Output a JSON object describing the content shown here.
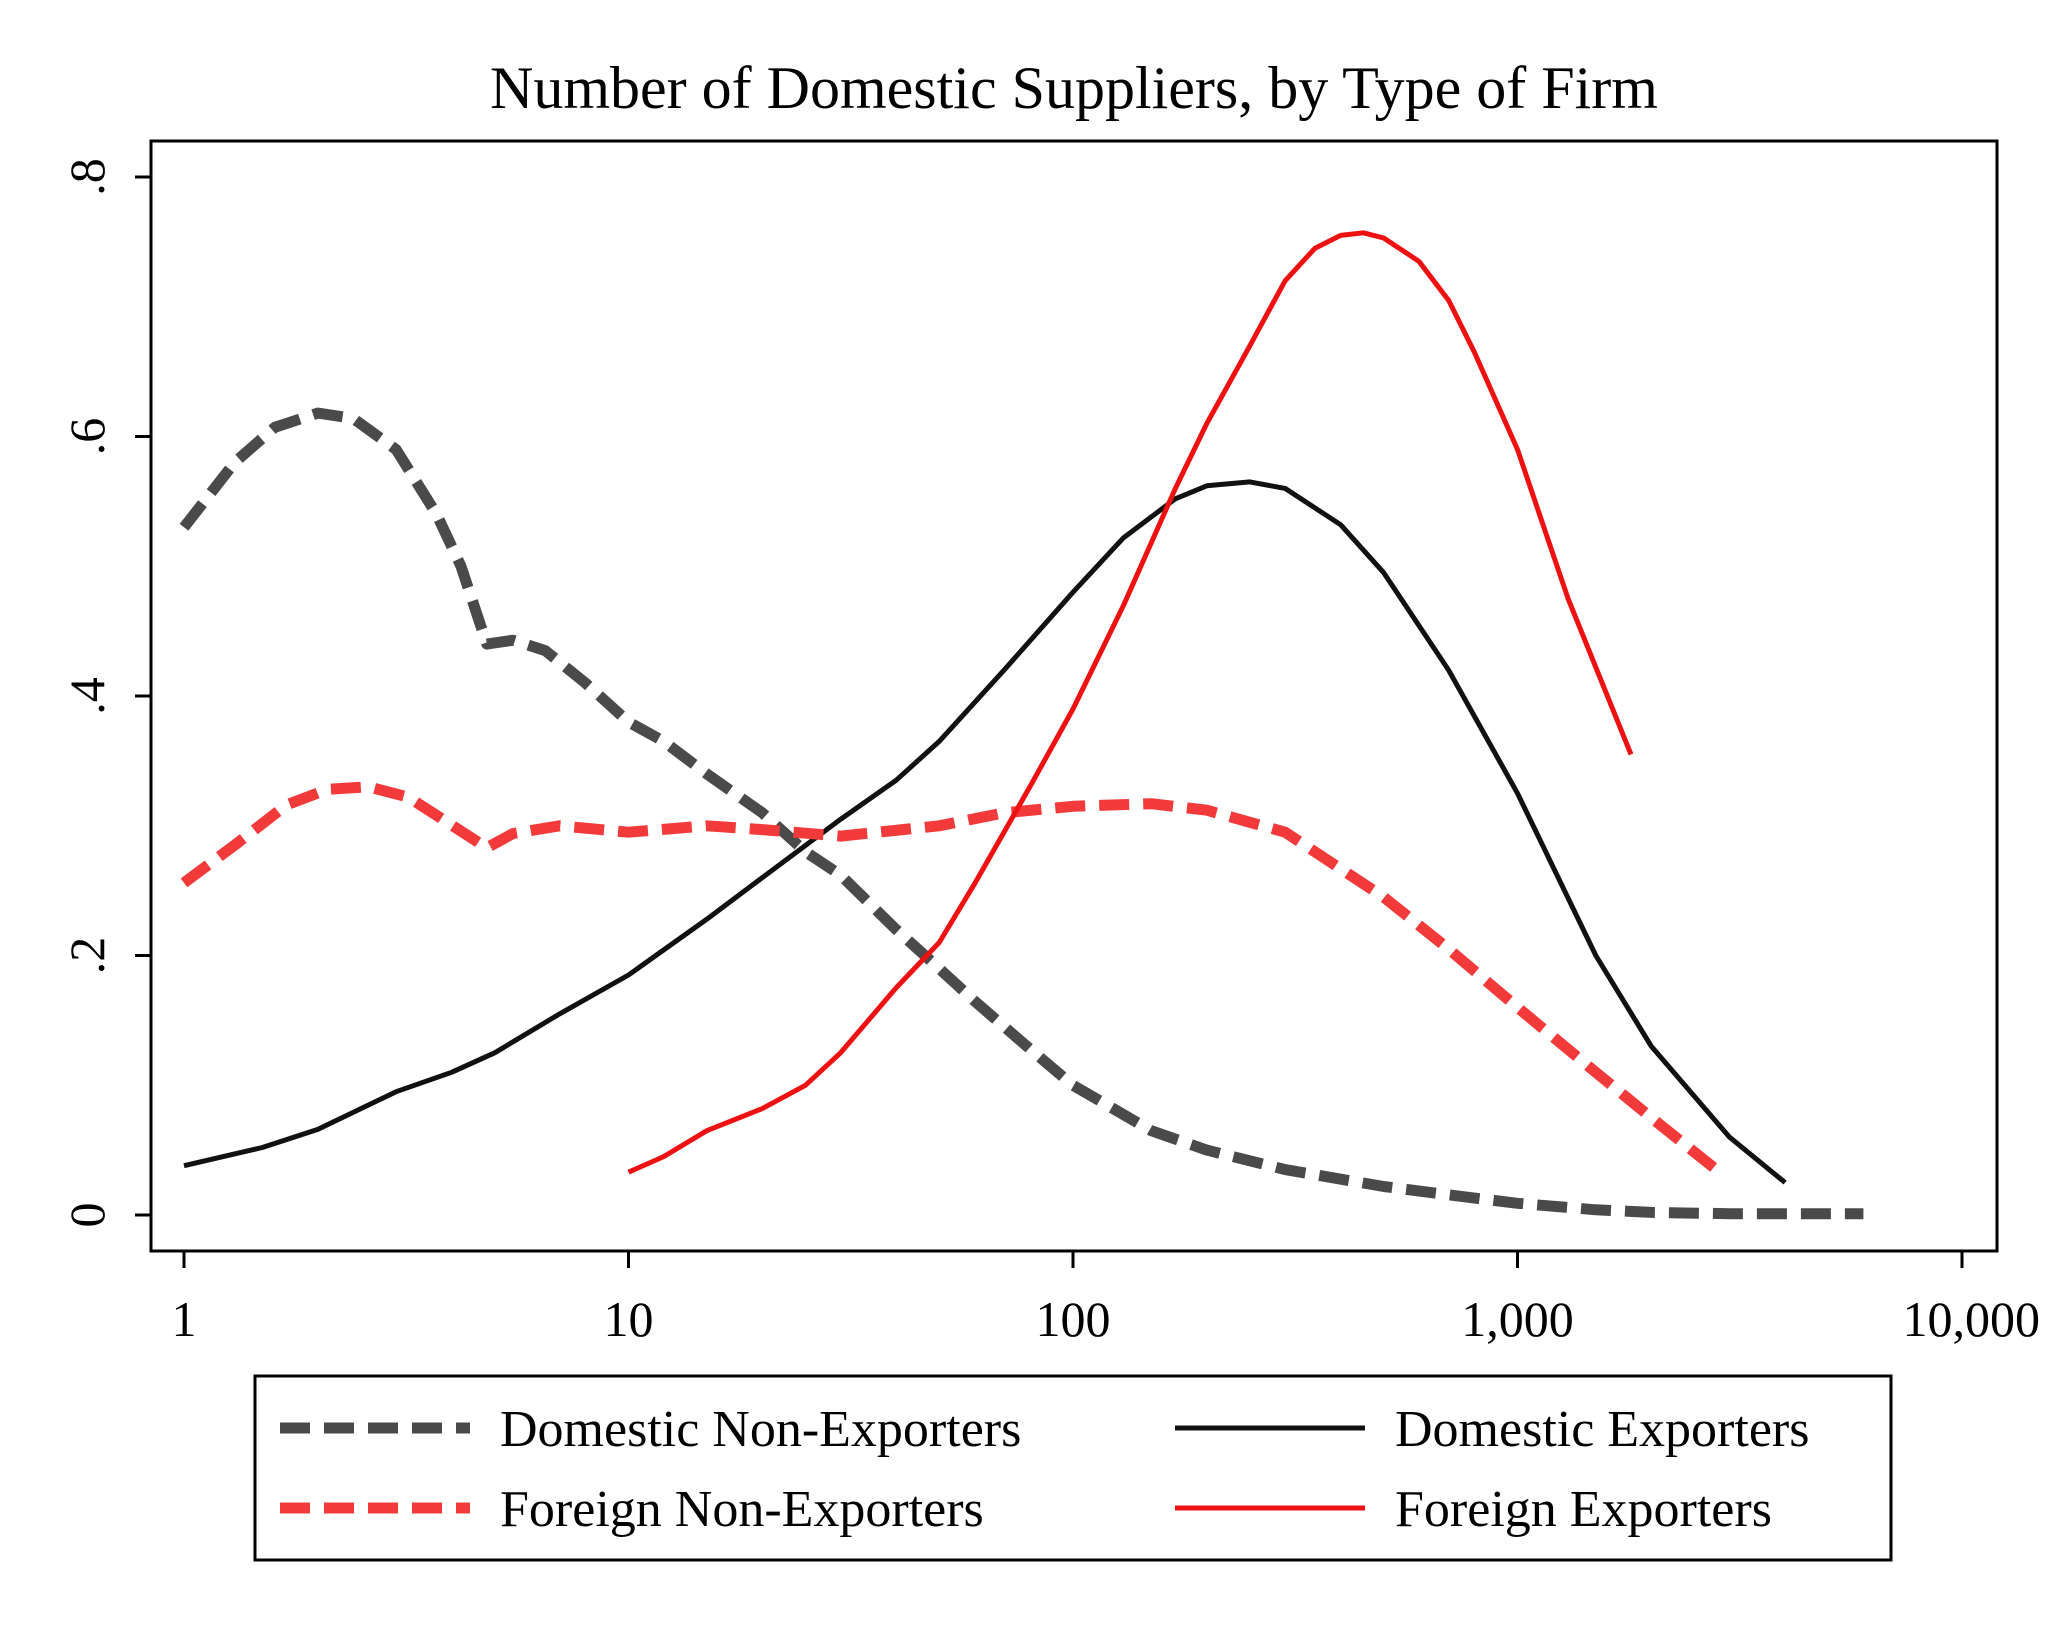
{
  "chart_data": {
    "type": "line",
    "title": "Number of Domestic Suppliers, by Type of Firm",
    "xlabel": "",
    "ylabel": "",
    "xscale": "log",
    "xlim": [
      1,
      10000
    ],
    "ylim": [
      0,
      0.8
    ],
    "x_ticks": [
      {
        "value": 1,
        "label": "1"
      },
      {
        "value": 10,
        "label": "10"
      },
      {
        "value": 100,
        "label": "100"
      },
      {
        "value": 1000,
        "label": "1,000"
      },
      {
        "value": 10000,
        "label": "10,000"
      }
    ],
    "y_ticks": [
      {
        "value": 0,
        "label": "0"
      },
      {
        "value": 0.2,
        "label": ".2"
      },
      {
        "value": 0.4,
        "label": ".4"
      },
      {
        "value": 0.6,
        "label": ".6"
      },
      {
        "value": 0.8,
        "label": ".8"
      }
    ],
    "grid": false,
    "legend_position": "bottom",
    "series": [
      {
        "name": "Domestic Non-Exporters",
        "color": "#4a4a4a",
        "style": "dashed",
        "x": [
          1,
          1.3,
          1.6,
          2.0,
          2.4,
          3.0,
          3.7,
          4.2,
          4.8,
          5.5,
          6.5,
          8,
          10,
          12,
          15,
          20,
          25,
          30,
          40,
          50,
          60,
          80,
          100,
          150,
          200,
          300,
          500,
          800,
          1000,
          1500,
          2000,
          3000,
          5000,
          6000
        ],
        "y": [
          0.53,
          0.58,
          0.607,
          0.618,
          0.614,
          0.59,
          0.54,
          0.5,
          0.44,
          0.443,
          0.435,
          0.41,
          0.38,
          0.365,
          0.34,
          0.31,
          0.28,
          0.262,
          0.22,
          0.19,
          0.165,
          0.128,
          0.1,
          0.065,
          0.05,
          0.035,
          0.022,
          0.013,
          0.009,
          0.004,
          0.002,
          0.001,
          0.001,
          0.001
        ]
      },
      {
        "name": "Domestic Exporters",
        "color": "#111111",
        "style": "solid",
        "x": [
          1,
          1.5,
          2,
          3,
          4,
          5,
          7,
          10,
          15,
          20,
          30,
          40,
          50,
          70,
          100,
          130,
          170,
          200,
          250,
          300,
          400,
          500,
          700,
          1000,
          1500,
          2000,
          3000,
          4000
        ],
        "y": [
          0.038,
          0.052,
          0.066,
          0.095,
          0.11,
          0.125,
          0.155,
          0.185,
          0.228,
          0.26,
          0.305,
          0.335,
          0.365,
          0.42,
          0.48,
          0.522,
          0.552,
          0.562,
          0.565,
          0.56,
          0.532,
          0.495,
          0.42,
          0.325,
          0.2,
          0.13,
          0.06,
          0.025
        ]
      },
      {
        "name": "Foreign Non-Exporters",
        "color": "#f23a3a",
        "style": "dashed",
        "x": [
          1,
          1.3,
          1.7,
          2.1,
          2.6,
          3.2,
          3.9,
          4.8,
          5.5,
          7,
          10,
          15,
          20,
          30,
          50,
          70,
          100,
          150,
          200,
          300,
          500,
          700,
          1000,
          1500,
          2000,
          2800
        ],
        "y": [
          0.256,
          0.285,
          0.316,
          0.328,
          0.33,
          0.322,
          0.303,
          0.283,
          0.294,
          0.3,
          0.295,
          0.3,
          0.297,
          0.292,
          0.3,
          0.31,
          0.315,
          0.317,
          0.312,
          0.295,
          0.245,
          0.205,
          0.16,
          0.11,
          0.075,
          0.035
        ]
      },
      {
        "name": "Foreign Exporters",
        "color": "#ee1111",
        "style": "solid",
        "x": [
          10,
          12,
          15,
          20,
          25,
          30,
          40,
          50,
          60,
          80,
          100,
          130,
          170,
          200,
          250,
          300,
          350,
          400,
          450,
          500,
          600,
          700,
          800,
          1000,
          1300,
          1800
        ],
        "y": [
          0.033,
          0.045,
          0.065,
          0.082,
          0.1,
          0.125,
          0.175,
          0.21,
          0.255,
          0.33,
          0.39,
          0.47,
          0.56,
          0.61,
          0.67,
          0.72,
          0.745,
          0.755,
          0.757,
          0.753,
          0.735,
          0.705,
          0.665,
          0.59,
          0.475,
          0.355
        ]
      }
    ]
  }
}
